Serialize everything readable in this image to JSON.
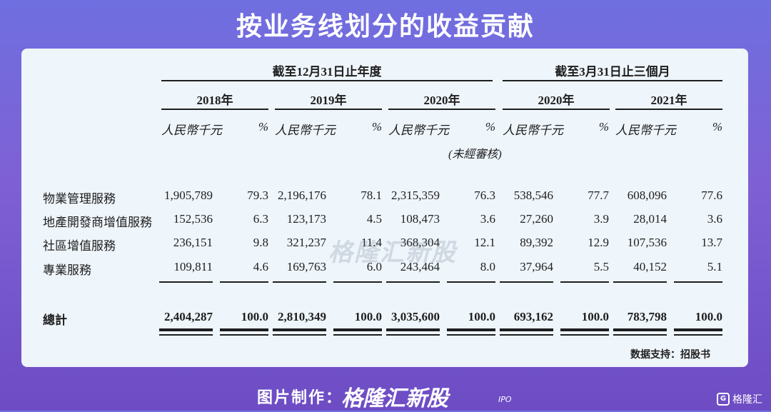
{
  "title": "按业务线划分的收益贡献",
  "table": {
    "group_left": "截至12月31日止年度",
    "group_right": "截至3月31日止三個月",
    "years": [
      "2018年",
      "2019年",
      "2020年",
      "2020年",
      "2021年"
    ],
    "unit_rmb": "人民幣千元",
    "unit_pct": "%",
    "unaudited": "(未經審核)",
    "rows": [
      {
        "label": "物業管理服務",
        "values": [
          "1,905,789",
          "79.3",
          "2,196,176",
          "78.1",
          "2,315,359",
          "76.3",
          "538,546",
          "77.7",
          "608,096",
          "77.6"
        ]
      },
      {
        "label": "地產開發商增值服務",
        "values": [
          "152,536",
          "6.3",
          "123,173",
          "4.5",
          "108,473",
          "3.6",
          "27,260",
          "3.9",
          "28,014",
          "3.6"
        ]
      },
      {
        "label": "社區增值服務",
        "values": [
          "236,151",
          "9.8",
          "321,237",
          "11.4",
          "368,304",
          "12.1",
          "89,392",
          "12.9",
          "107,536",
          "13.7"
        ]
      },
      {
        "label": "專業服務",
        "values": [
          "109,811",
          "4.6",
          "169,763",
          "6.0",
          "243,464",
          "8.0",
          "37,964",
          "5.5",
          "40,152",
          "5.1"
        ]
      }
    ],
    "total": {
      "label": "總計",
      "values": [
        "2,404,287",
        "100.0",
        "2,810,349",
        "100.0",
        "3,035,600",
        "100.0",
        "693,162",
        "100.0",
        "783,798",
        "100.0"
      ]
    }
  },
  "source": "数据支持：招股书",
  "watermark": "格隆汇新股",
  "footer": {
    "label": "图片制作：",
    "brand": "格隆汇新股",
    "brand_sub": "IPO"
  },
  "corner": {
    "icon_char": "G",
    "text": "格隆汇"
  }
}
